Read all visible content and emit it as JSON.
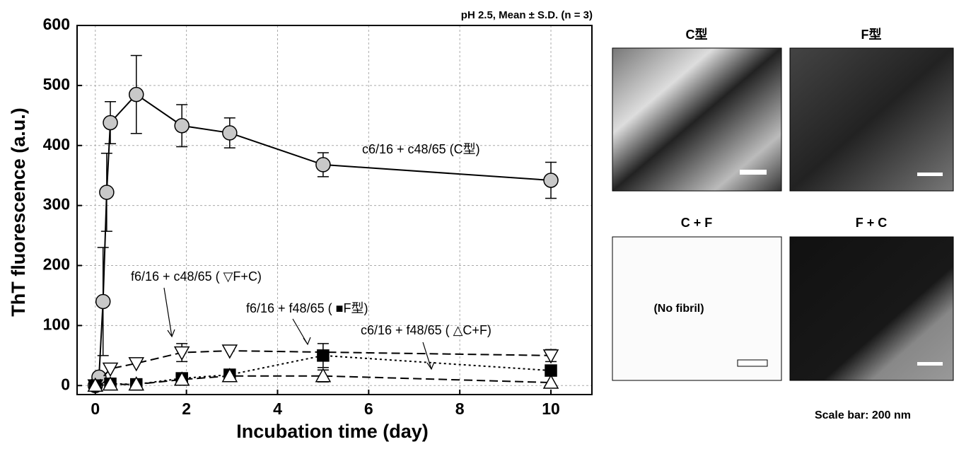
{
  "chart_data": {
    "type": "line",
    "subtitle": "pH 2.5, Mean ± S.D. (n = 3)",
    "x_label": "Incubation time (day)",
    "y_label": "ThT fluorescence (a.u.)",
    "xlim": [
      -0.4,
      10.9
    ],
    "ylim": [
      -15,
      600
    ],
    "xticks": [
      0,
      2,
      4,
      6,
      8,
      10
    ],
    "yticks": [
      0,
      100,
      200,
      300,
      400,
      500,
      600
    ],
    "grid": true,
    "series": [
      {
        "name": "c6/16 + c48/65 (C型)",
        "color": "#000000",
        "marker": "circle",
        "marker_color": "#c8c8c8",
        "dash": "solid",
        "x": [
          0,
          0.08,
          0.17,
          0.25,
          0.33,
          0.9,
          1.9,
          2.95,
          5,
          10
        ],
        "values": [
          0,
          14,
          140,
          322,
          438,
          485,
          433,
          421,
          368,
          342
        ],
        "errors": [
          null,
          null,
          90,
          65,
          35,
          65,
          35,
          25,
          20,
          30
        ]
      },
      {
        "name": "f6/16 + c48/65 ( ▽F+C)",
        "color": "#000000",
        "marker": "triangle-down",
        "marker_color": "#ffffff",
        "dash": "dashed",
        "x": [
          0,
          0.33,
          0.9,
          1.9,
          2.95,
          10
        ],
        "values": [
          0,
          28,
          37,
          55,
          58,
          50
        ],
        "errors": [
          null,
          null,
          null,
          15,
          null,
          10
        ]
      },
      {
        "name": "f6/16 + f48/65 ( ■F型)",
        "color": "#000000",
        "marker": "square",
        "marker_color": "#000000",
        "dash": "dotted",
        "x": [
          0,
          0.33,
          0.9,
          1.9,
          2.95,
          5,
          10
        ],
        "values": [
          0,
          3,
          2,
          12,
          18,
          50,
          25
        ],
        "errors": [
          null,
          null,
          null,
          null,
          null,
          20,
          null
        ]
      },
      {
        "name": "c6/16 + f48/65 ( △C+F)",
        "color": "#000000",
        "marker": "triangle-up",
        "marker_color": "#ffffff",
        "dash": "dashed",
        "x": [
          0,
          0.33,
          0.9,
          1.9,
          2.95,
          5,
          10
        ],
        "values": [
          0,
          2,
          2,
          10,
          16,
          16,
          5
        ],
        "errors": [
          null,
          null,
          null,
          null,
          null,
          10,
          null
        ]
      }
    ]
  },
  "panels": [
    {
      "title": "C型"
    },
    {
      "title": "F型"
    },
    {
      "title": "C + F",
      "note": "(No fibril)"
    },
    {
      "title": "F + C"
    }
  ],
  "footnote": "Scale bar: 200 nm"
}
